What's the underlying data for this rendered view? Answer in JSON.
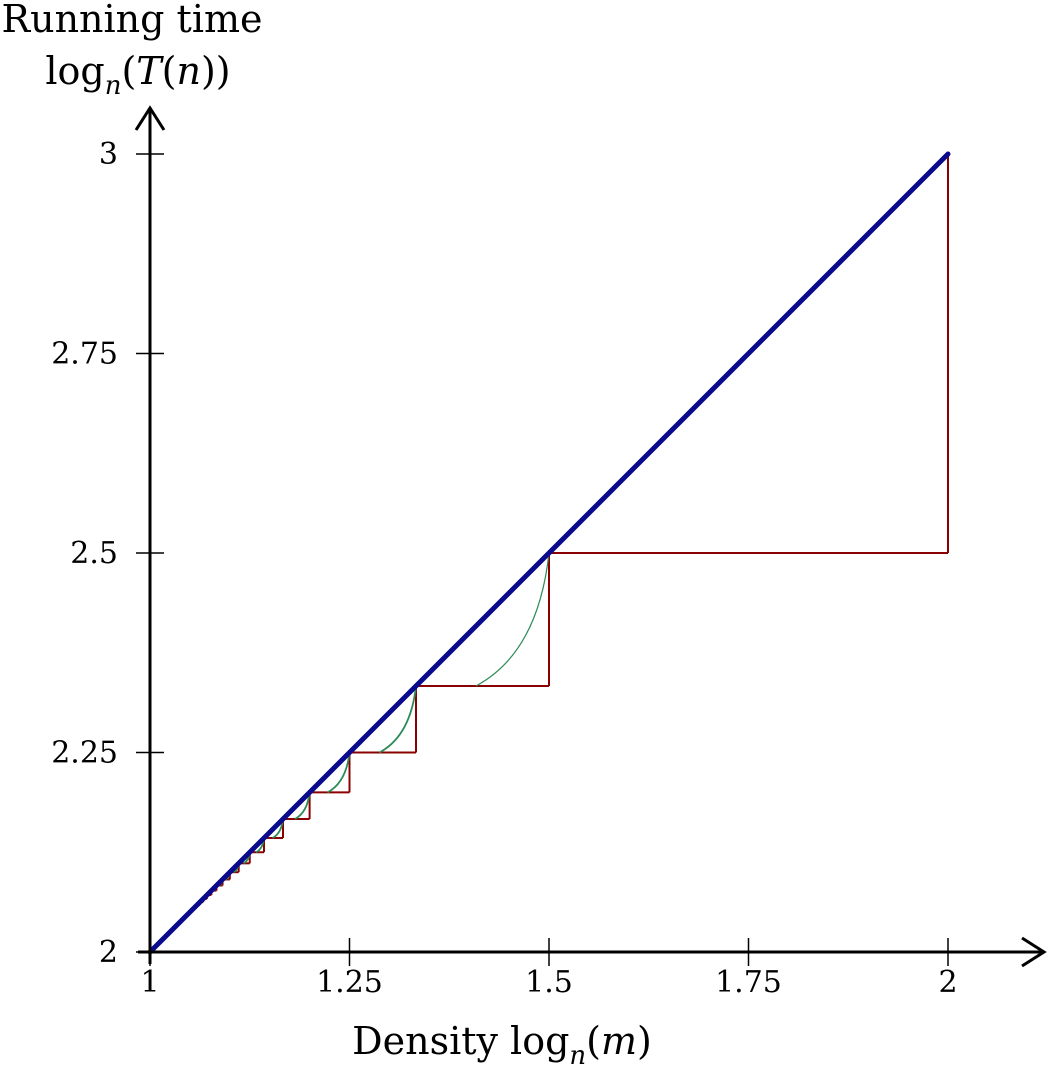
{
  "chart_data": {
    "type": "line",
    "ylabel": {
      "line1": "Running time",
      "line2": {
        "fn": "log",
        "sub": "n",
        "open": "(",
        "arg_fn": "T",
        "arg_open": "(",
        "arg_var": "n",
        "close": "))"
      }
    },
    "xlabel": {
      "prefix": "Density ",
      "fn": "log",
      "sub": "n",
      "open": "(",
      "arg_var": "m",
      "close": ")"
    },
    "xlim": [
      1,
      2.25
    ],
    "ylim": [
      2,
      3.0
    ],
    "x_ticks": [
      1,
      1.25,
      1.5,
      1.75,
      2
    ],
    "x_tick_labels": [
      "1",
      "1.25",
      "1.5",
      "1.75",
      "2"
    ],
    "y_ticks": [
      2,
      2.25,
      2.5,
      2.75,
      3
    ],
    "y_tick_labels": [
      "2",
      "2.25",
      "2.5",
      "2.75",
      "3"
    ],
    "colors": {
      "blue": "#0a0a8c",
      "red": "#8b0000",
      "green": "#2e8b57",
      "axis": "#000000"
    },
    "series": [
      {
        "style": "blue-thick",
        "x": [
          1,
          2
        ],
        "y": [
          2,
          3
        ]
      },
      {
        "style": "red-staircase",
        "k_values": [
          1,
          2,
          3,
          4,
          5,
          6,
          7,
          8,
          9,
          10,
          11,
          12,
          13,
          14,
          15,
          16,
          17,
          18,
          19,
          20,
          21,
          22,
          23,
          24,
          25,
          26,
          27,
          28,
          29,
          30,
          31,
          32,
          33,
          34,
          35,
          36,
          37,
          38,
          39,
          40
        ]
      },
      {
        "style": "green-curves",
        "k_values": [
          2,
          3,
          4,
          5,
          6,
          7,
          8,
          9,
          10,
          11,
          12,
          13,
          14,
          15,
          16,
          17,
          18,
          19,
          20
        ]
      }
    ]
  }
}
